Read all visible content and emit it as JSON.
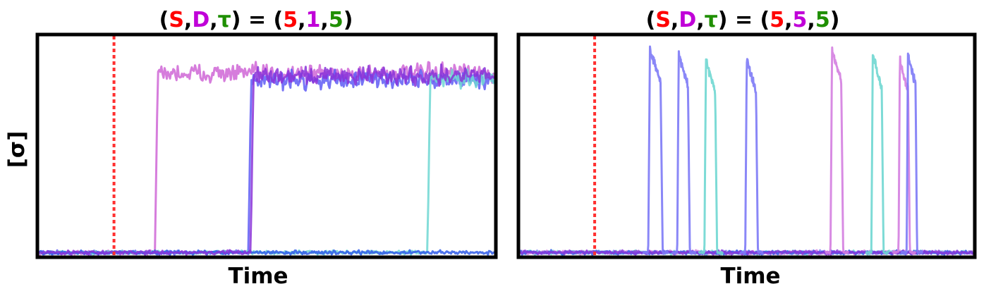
{
  "ylabel": "[σ]",
  "colors": {
    "S": "#ff0000",
    "D": "#c000d8",
    "tau": "#1f8f00",
    "black": "#000000"
  },
  "chart_data": [
    {
      "type": "line",
      "title_parts": {
        "open": "(",
        "S": "S",
        "c1": ",",
        "D": "D",
        "c2": ",",
        "tau": "τ",
        "mid": ") = (",
        "S_val": "5",
        "c3": ",",
        "D_val": "1",
        "c4": ",",
        "tau_val": "5",
        "close": ")"
      },
      "xlabel": "Time",
      "ylabel": "[σ]",
      "xlim": [
        0,
        100
      ],
      "ylim": [
        0,
        1
      ],
      "stimulus_time": 16.5,
      "grid": false,
      "series": [
        {
          "color": "#cf66d6",
          "onset": 25.5,
          "level": 0.83
        },
        {
          "color": "#5f5cf5",
          "onset": 46,
          "level": 0.8
        },
        {
          "color": "#6fd7d2",
          "onset": 85.3,
          "level": 0.8
        },
        {
          "color": "#2f5ae8",
          "onset": null,
          "level": 0
        },
        {
          "color": "#8a33d8",
          "onset": 46.5,
          "level": 0.82
        }
      ]
    },
    {
      "type": "line",
      "title_parts": {
        "open": "(",
        "S": "S",
        "c1": ",",
        "D": "D",
        "c2": ",",
        "tau": "τ",
        "mid": ") = (",
        "S_val": "5",
        "c3": ",",
        "D_val": "5",
        "c4": ",",
        "tau_val": "5",
        "close": ")"
      },
      "xlabel": "Time",
      "ylabel": "",
      "xlim": [
        0,
        100
      ],
      "ylim": [
        0,
        1
      ],
      "stimulus_time": 16.5,
      "grid": false,
      "pulses": [
        {
          "color": "#7d7af6",
          "start": 28.3,
          "end": 31.5,
          "peak": 0.95
        },
        {
          "color": "#7d7af6",
          "start": 34.7,
          "end": 37.5,
          "peak": 0.93
        },
        {
          "color": "#6fd7d2",
          "start": 40.7,
          "end": 43.5,
          "peak": 0.9
        },
        {
          "color": "#7d7af6",
          "start": 49.7,
          "end": 52.5,
          "peak": 0.9
        },
        {
          "color": "#d47ee0",
          "start": 68.5,
          "end": 71.3,
          "peak": 0.95
        },
        {
          "color": "#6fd7d2",
          "start": 77.5,
          "end": 80.2,
          "peak": 0.92
        },
        {
          "color": "#d47ee0",
          "start": 83.5,
          "end": 86.0,
          "peak": 0.9
        },
        {
          "color": "#7d7af6",
          "start": 85.3,
          "end": 87.6,
          "peak": 0.93
        }
      ],
      "baseline_series_colors": [
        "#7d7af6",
        "#6fd7d2",
        "#d47ee0",
        "#2f5ae8",
        "#8a33d8"
      ]
    }
  ]
}
